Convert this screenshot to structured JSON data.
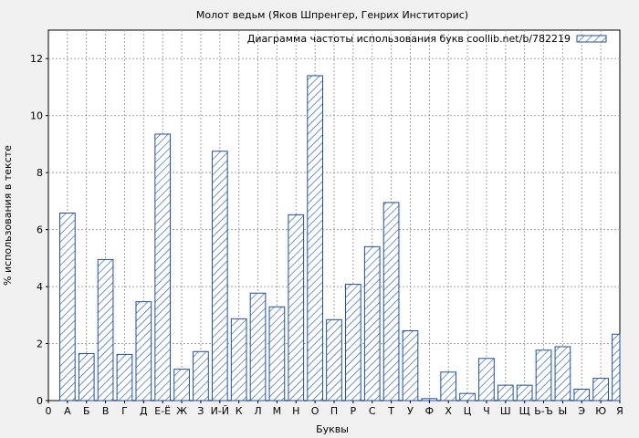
{
  "chart_data": {
    "type": "bar",
    "title": "Молот ведьм (Яков Шпренгер, Генрих Инститорис)",
    "xlabel": "Буквы",
    "ylabel": "% использования в тексте",
    "legend": {
      "label": "Диаграмма частоты использования букв coollib.net/b/782219",
      "placement": "top-right"
    },
    "ylim": [
      0,
      13
    ],
    "yticks": [
      0,
      2,
      4,
      6,
      8,
      10,
      12
    ],
    "grid": true,
    "x_tick_labels": [
      "0",
      "А",
      "Б",
      "В",
      "Г",
      "Д",
      "Е-Ё",
      "Ж",
      "З",
      "И-Й",
      "К",
      "Л",
      "М",
      "Н",
      "О",
      "П",
      "Р",
      "С",
      "Т",
      "У",
      "Ф",
      "Х",
      "Ц",
      "Ч",
      "Ш",
      "Щ",
      "Ь-Ъ",
      "Ы",
      "Э",
      "Ю",
      "Я"
    ],
    "categories": [
      "А",
      "Б",
      "В",
      "Г",
      "Д",
      "Е-Ё",
      "Ж",
      "З",
      "И-Й",
      "К",
      "Л",
      "М",
      "Н",
      "О",
      "П",
      "Р",
      "С",
      "Т",
      "У",
      "Ф",
      "Х",
      "Ц",
      "Ч",
      "Ш",
      "Щ",
      "Ь-Ъ",
      "Ы",
      "Э",
      "Ю",
      "Я"
    ],
    "values": [
      6.58,
      1.65,
      4.95,
      1.62,
      3.47,
      9.35,
      1.1,
      1.72,
      8.75,
      2.87,
      3.77,
      3.29,
      6.52,
      11.4,
      2.84,
      4.08,
      5.4,
      6.95,
      2.45,
      0.07,
      1.0,
      0.25,
      1.48,
      0.54,
      0.54,
      1.77,
      1.89,
      0.4,
      0.78,
      2.33
    ],
    "colors": {
      "bar_stroke": "#1f4ea0",
      "hatch": "#1f4ea0",
      "bar_fill": "#ffffff",
      "plot_bg": "#ffffff",
      "page_bg": "#f0f0f0",
      "grid": "#a0a0a0"
    }
  }
}
